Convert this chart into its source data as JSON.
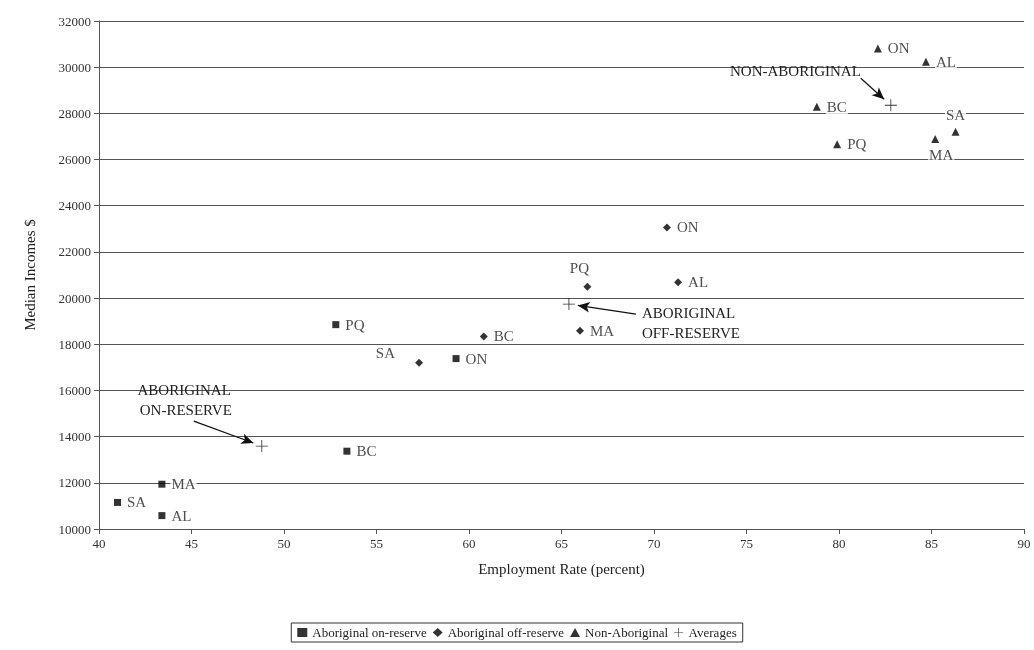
{
  "chart_data": {
    "type": "scatter",
    "xlabel": "Employment Rate (percent)",
    "ylabel": "Median Incomes $",
    "xlim": [
      40,
      90
    ],
    "xticks": [
      40,
      45,
      50,
      55,
      60,
      65,
      70,
      75,
      80,
      85,
      90
    ],
    "ylim": [
      10000,
      32000
    ],
    "yticks": [
      10000,
      12000,
      14000,
      16000,
      18000,
      20000,
      22000,
      24000,
      26000,
      28000,
      30000,
      32000
    ],
    "grid": "y",
    "legend": "bottom",
    "series": [
      {
        "name": "Aboriginal on-reserve",
        "color": "#000000",
        "marker": "square",
        "x": [
          41.0,
          43.4,
          43.4,
          53.4,
          52.8,
          59.3
        ],
        "values": [
          11150,
          11940,
          10580,
          13370,
          18850,
          17380
        ],
        "value_labels": [
          "SA",
          "MA",
          "AL",
          "BC",
          "PQ",
          "ON"
        ]
      },
      {
        "name": "Aboriginal off-reserve",
        "color": "#000000",
        "marker": "diamond",
        "x": [
          57.3,
          60.8,
          66.0,
          66.4,
          71.3,
          70.7
        ],
        "values": [
          17200,
          18340,
          18590,
          20490,
          20690,
          23060
        ],
        "value_labels": [
          "SA",
          "BC",
          "MA",
          "PQ",
          "AL",
          "ON"
        ]
      },
      {
        "name": "Non-Aboriginal",
        "color": "#000000",
        "marker": "triangle",
        "x": [
          82.1,
          84.7,
          78.8,
          79.9,
          86.3,
          85.2
        ],
        "values": [
          30810,
          30240,
          28290,
          26660,
          27200,
          26890
        ],
        "value_labels": [
          "ON",
          "AL",
          "BC",
          "PQ",
          "SA",
          "MA"
        ]
      },
      {
        "name": "Averages",
        "color": "#000000",
        "marker": "cross",
        "x": [
          48.8,
          65.4,
          82.8
        ],
        "values": [
          13590,
          19740,
          28350
        ]
      }
    ],
    "annotations": [
      {
        "text": "ABORIGINAL ON-RESERVE",
        "x": 48.8,
        "y": 13590
      },
      {
        "text": "ABORIGINAL OFF-RESERVE",
        "x": 65.4,
        "y": 19740
      },
      {
        "text": "NON-ABORIGINAL",
        "x": 82.8,
        "y": 28350
      }
    ]
  }
}
